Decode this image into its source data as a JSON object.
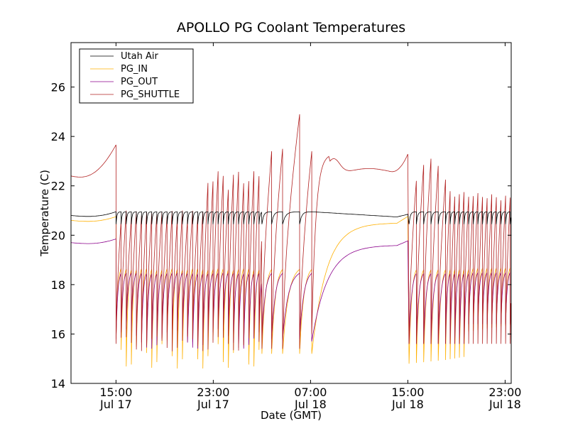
{
  "chart_data": {
    "type": "line",
    "title": "APOLLO PG Coolant Temperatures",
    "xlabel": "Date (GMT)",
    "ylabel": "Temperature (C)",
    "xlim_hours": [
      11.3,
      47.5
    ],
    "x_unit": "hours since Jul 17 00:00 GMT",
    "ylim": [
      14,
      27.8
    ],
    "grid": false,
    "legend_position": "top-left",
    "y_ticks": [
      {
        "value": 14,
        "label": "14"
      },
      {
        "value": 16,
        "label": "16"
      },
      {
        "value": 18,
        "label": "18"
      },
      {
        "value": 20,
        "label": "20"
      },
      {
        "value": 22,
        "label": "22"
      },
      {
        "value": 24,
        "label": "24"
      },
      {
        "value": 26,
        "label": "26"
      }
    ],
    "x_ticks": [
      {
        "hour": 15,
        "label_time": "15:00",
        "label_date": "Jul 17"
      },
      {
        "hour": 23,
        "label_time": "23:00",
        "label_date": "Jul 17"
      },
      {
        "hour": 31,
        "label_time": "07:00",
        "label_date": "Jul 18"
      },
      {
        "hour": 39,
        "label_time": "15:00",
        "label_date": "Jul 18"
      },
      {
        "hour": 47,
        "label_time": "23:00",
        "label_date": "Jul 18"
      }
    ],
    "series": [
      {
        "name": "Utah Air",
        "color": "#000000",
        "steady_before_cycling": 20.8,
        "cycling_band": [
          20.4,
          21.0
        ],
        "steady_mid": 20.9
      },
      {
        "name": "PG_IN",
        "color": "#ffb000",
        "steady_before_cycling": 20.6,
        "cycling_min": 14.6,
        "cycling_max_approx": 19.2,
        "recovery_plateau": 20.5
      },
      {
        "name": "PG_OUT",
        "color": "#8b008b",
        "steady_before_cycling": 19.7,
        "cycling_min": 15.3,
        "cycling_max_approx": 19.0,
        "recovery_plateau": 19.6
      },
      {
        "name": "PG_SHUTTLE",
        "color": "#b22222",
        "steady_before_cycling": 22.4,
        "pre_cycle_peak": 23.5,
        "cycling_peak_max": 24.9,
        "recovery_peak": 23.3,
        "recovery_plateau": 22.6
      }
    ],
    "events": [
      {
        "description": "cycling starts",
        "hour": 15.0,
        "peak": 23.5
      },
      {
        "description": "long cycle peak",
        "hour": 30.1,
        "peak": 24.9
      },
      {
        "description": "last cycle before rest",
        "hour": 31.1
      },
      {
        "description": "cycling resumes",
        "hour": 39.1,
        "peak": 23.55
      }
    ]
  },
  "legend": {
    "items": [
      {
        "label": "Utah Air",
        "color": "#000000"
      },
      {
        "label": "PG_IN",
        "color": "#ffb000"
      },
      {
        "label": "PG_OUT",
        "color": "#8b008b"
      },
      {
        "label": "PG_SHUTTLE",
        "color": "#b22222"
      }
    ]
  }
}
